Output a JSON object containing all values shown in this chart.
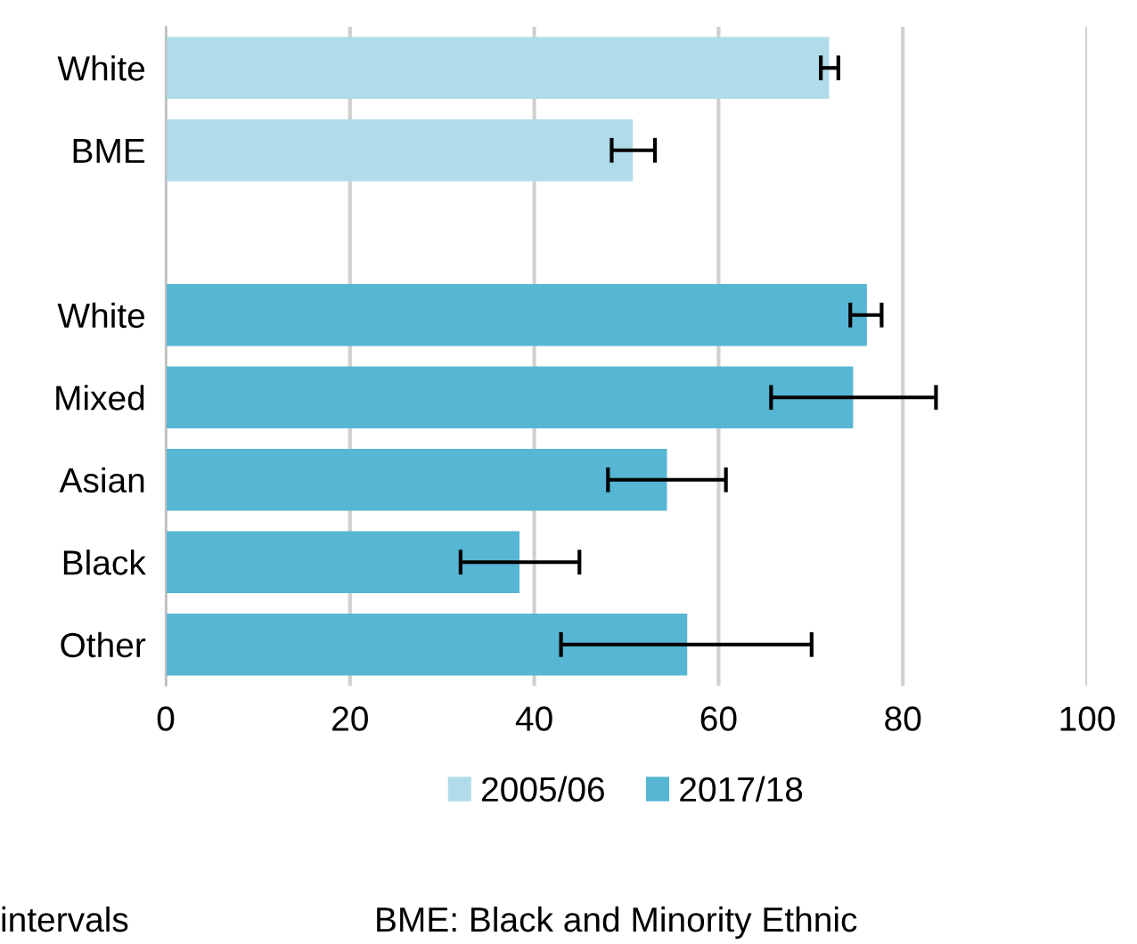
{
  "chart_data": {
    "type": "bar",
    "orientation": "horizontal",
    "categories": [
      "White",
      "BME",
      null,
      "White",
      "Mixed",
      "Asian",
      "Black",
      "Other"
    ],
    "series": [
      {
        "name": "2005/06",
        "color": "#b0dcea",
        "values": [
          72,
          50.7,
          null,
          null,
          null,
          null,
          null,
          null
        ],
        "errors": [
          [
            71.1,
            73
          ],
          [
            48.4,
            53.1
          ],
          null,
          null,
          null,
          null,
          null,
          null
        ]
      },
      {
        "name": "2017/18",
        "color": "#56b6d3",
        "values": [
          null,
          null,
          null,
          76.1,
          74.6,
          54.4,
          38.4,
          56.6
        ],
        "errors": [
          null,
          null,
          null,
          [
            74.3,
            77.7
          ],
          [
            65.7,
            83.6
          ],
          [
            48.0,
            60.8
          ],
          [
            32.0,
            44.9
          ],
          [
            42.9,
            70.1
          ]
        ]
      }
    ],
    "xlim": [
      0,
      100
    ],
    "xticks": [
      0,
      20,
      40,
      60,
      80,
      100
    ],
    "grid": "x",
    "legend": "bottom",
    "annotations": [
      "intervals",
      "BME: Black and Minority Ethnic"
    ]
  }
}
